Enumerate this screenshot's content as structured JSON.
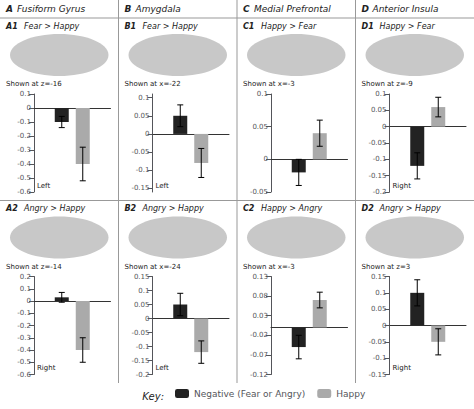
{
  "chart_data": [
    {
      "type": "bar",
      "title": "A1  Fear > Happy",
      "subtitle": "A Fusiform Gyrus",
      "annotations": [
        "Shown at z=-16",
        "Left"
      ],
      "categories": [
        null
      ],
      "series": [
        {
          "name": "Negative (Fear or Angry)",
          "color": "#222222",
          "values": [
            -0.1
          ],
          "errors": [
            0.04
          ]
        },
        {
          "name": "Happy",
          "color": "#aaaaaa",
          "values": [
            -0.4
          ],
          "errors": [
            0.12
          ]
        }
      ],
      "ylim": [
        -0.6,
        0.1
      ],
      "yticks": [
        -0.6,
        -0.5,
        -0.4,
        -0.3,
        -0.2,
        -0.1,
        0,
        0.1
      ],
      "grid": false,
      "legend": "bottom"
    },
    {
      "type": "bar",
      "title": "B1  Fear > Happy",
      "subtitle": "B Amygdala",
      "annotations": [
        "Shown at x=-22",
        "Left"
      ],
      "categories": [
        null
      ],
      "series": [
        {
          "name": "Negative (Fear or Angry)",
          "color": "#222222",
          "values": [
            0.05
          ],
          "errors": [
            0.03
          ]
        },
        {
          "name": "Happy",
          "color": "#aaaaaa",
          "values": [
            -0.08
          ],
          "errors": [
            0.04
          ]
        }
      ],
      "ylim": [
        -0.16,
        0.11
      ],
      "yticks": [
        -0.15,
        -0.1,
        -0.05,
        0,
        0.05,
        0.1
      ],
      "grid": false,
      "legend": "bottom"
    },
    {
      "type": "bar",
      "title": "C1  Happy > Fear",
      "subtitle": "C Medial Prefrontal",
      "annotations": [
        "Shown at x=-3"
      ],
      "categories": [
        null
      ],
      "series": [
        {
          "name": "Negative (Fear or Angry)",
          "color": "#222222",
          "values": [
            -0.02
          ],
          "errors": [
            0.02
          ]
        },
        {
          "name": "Happy",
          "color": "#aaaaaa",
          "values": [
            0.04
          ],
          "errors": [
            0.02
          ]
        }
      ],
      "ylim": [
        -0.05,
        0.1
      ],
      "yticks": [
        -0.05,
        0,
        0.05,
        0.1
      ],
      "grid": false,
      "legend": "bottom"
    },
    {
      "type": "bar",
      "title": "D1  Happy > Fear",
      "subtitle": "D Anterior Insula",
      "annotations": [
        "Shown at z=-9",
        "Right"
      ],
      "categories": [
        null
      ],
      "series": [
        {
          "name": "Negative (Fear or Angry)",
          "color": "#222222",
          "values": [
            -0.12
          ],
          "errors": [
            0.04
          ]
        },
        {
          "name": "Happy",
          "color": "#aaaaaa",
          "values": [
            0.06
          ],
          "errors": [
            0.03
          ]
        }
      ],
      "ylim": [
        -0.2,
        0.1
      ],
      "yticks": [
        -0.2,
        -0.15,
        -0.1,
        -0.05,
        0,
        0.05,
        0.1
      ],
      "grid": false,
      "legend": "bottom"
    },
    {
      "type": "bar",
      "title": "A2  Angry > Happy",
      "annotations": [
        "Shown at z=-14",
        "Right"
      ],
      "categories": [
        null
      ],
      "series": [
        {
          "name": "Negative (Fear or Angry)",
          "color": "#222222",
          "values": [
            0.03
          ],
          "errors": [
            0.04
          ]
        },
        {
          "name": "Happy",
          "color": "#aaaaaa",
          "values": [
            -0.4
          ],
          "errors": [
            0.1
          ]
        }
      ],
      "ylim": [
        -0.6,
        0.2
      ],
      "yticks": [
        -0.6,
        -0.5,
        -0.4,
        -0.3,
        -0.2,
        -0.1,
        0,
        0.1,
        0.2
      ],
      "grid": false,
      "legend": "bottom"
    },
    {
      "type": "bar",
      "title": "B2  Angry > Happy",
      "annotations": [
        "Shown at x=-24",
        "Left"
      ],
      "categories": [
        null
      ],
      "series": [
        {
          "name": "Negative (Fear or Angry)",
          "color": "#222222",
          "values": [
            0.05
          ],
          "errors": [
            0.04
          ]
        },
        {
          "name": "Happy",
          "color": "#aaaaaa",
          "values": [
            -0.12
          ],
          "errors": [
            0.04
          ]
        }
      ],
      "ylim": [
        -0.2,
        0.15
      ],
      "yticks": [
        -0.2,
        -0.15,
        -0.1,
        -0.05,
        0,
        0.05,
        0.1,
        0.15
      ],
      "grid": false,
      "legend": "bottom"
    },
    {
      "type": "bar",
      "title": "C2  Happy > Angry",
      "annotations": [
        "Shown at x=-3"
      ],
      "categories": [
        null
      ],
      "series": [
        {
          "name": "Negative (Fear or Angry)",
          "color": "#222222",
          "values": [
            -0.05
          ],
          "errors": [
            0.03
          ]
        },
        {
          "name": "Happy",
          "color": "#aaaaaa",
          "values": [
            0.07
          ],
          "errors": [
            0.02
          ]
        }
      ],
      "ylim": [
        -0.12,
        0.13
      ],
      "yticks": [
        -0.12,
        -0.07,
        -0.02,
        0.03,
        0.08,
        0.13
      ],
      "grid": false,
      "legend": "bottom"
    },
    {
      "type": "bar",
      "title": "D2  Angry > Happy",
      "annotations": [
        "Shown at z=3",
        "Right",
        "Key:"
      ],
      "categories": [
        null
      ],
      "series": [
        {
          "name": "Negative (Fear or Angry)",
          "color": "#222222",
          "values": [
            0.1
          ],
          "errors": [
            0.04
          ]
        },
        {
          "name": "Happy",
          "color": "#aaaaaa",
          "values": [
            -0.05
          ],
          "errors": [
            0.04
          ]
        }
      ],
      "ylim": [
        -0.15,
        0.15
      ],
      "yticks": [
        -0.15,
        -0.1,
        -0.05,
        0,
        0.05,
        0.1,
        0.15
      ],
      "grid": false,
      "legend": "bottom"
    }
  ]
}
